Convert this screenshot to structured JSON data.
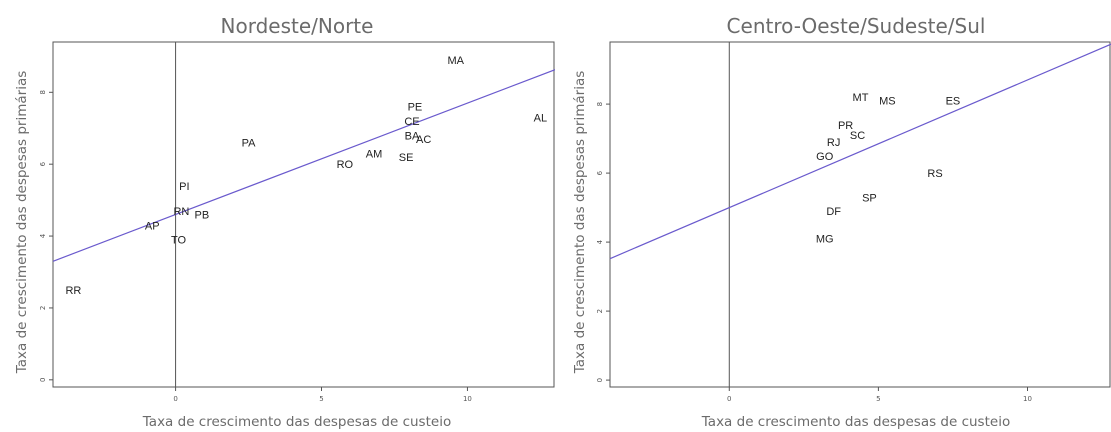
{
  "chart_data": [
    {
      "type": "scatter",
      "title": "Nordeste/Norte",
      "xlabel": "Taxa de crescimento das despesas de custeio",
      "ylabel": "Taxa de crescimento das despesas primárias",
      "xlim": [
        -4.2,
        13
      ],
      "ylim": [
        -0.2,
        9.4
      ],
      "xticks": [
        "0",
        "5",
        "10"
      ],
      "xtick_values": [
        0,
        5,
        10
      ],
      "yticks": [
        "0",
        "2",
        "4",
        "6",
        "8"
      ],
      "ytick_values": [
        0,
        2,
        4,
        6,
        8
      ],
      "grid": false,
      "fit_line": {
        "intercept": 4.6,
        "slope": 0.31,
        "color": "#6a5acd"
      },
      "points": [
        {
          "label": "MA",
          "x": 9.6,
          "y": 8.9
        },
        {
          "label": "AL",
          "x": 12.5,
          "y": 7.3
        },
        {
          "label": "PE",
          "x": 8.2,
          "y": 7.6
        },
        {
          "label": "CE",
          "x": 8.1,
          "y": 7.2
        },
        {
          "label": "BA",
          "x": 8.1,
          "y": 6.8
        },
        {
          "label": "AC",
          "x": 8.5,
          "y": 6.7
        },
        {
          "label": "PA",
          "x": 2.5,
          "y": 6.6
        },
        {
          "label": "AM",
          "x": 6.8,
          "y": 6.3
        },
        {
          "label": "SE",
          "x": 7.9,
          "y": 6.2
        },
        {
          "label": "RO",
          "x": 5.8,
          "y": 6.0
        },
        {
          "label": "PI",
          "x": 0.3,
          "y": 5.4
        },
        {
          "label": "RN",
          "x": 0.2,
          "y": 4.7
        },
        {
          "label": "PB",
          "x": 0.9,
          "y": 4.6
        },
        {
          "label": "AP",
          "x": -0.8,
          "y": 4.3
        },
        {
          "label": "TO",
          "x": 0.1,
          "y": 3.9
        },
        {
          "label": "RR",
          "x": -3.5,
          "y": 2.5
        }
      ]
    },
    {
      "type": "scatter",
      "title": "Centro-Oeste/Sudeste/Sul",
      "xlabel": "Taxa de crescimento das despesas de custeio",
      "ylabel": "Taxa de crescimento das despesas primárias",
      "xlim": [
        -4,
        12.8
      ],
      "ylim": [
        -0.2,
        9.8
      ],
      "xticks": [
        "0",
        "5",
        "10"
      ],
      "xtick_values": [
        0,
        5,
        10
      ],
      "yticks": [
        "0",
        "2",
        "4",
        "6",
        "8"
      ],
      "ytick_values": [
        0,
        2,
        4,
        6,
        8
      ],
      "grid": false,
      "fit_line": {
        "intercept": 5.0,
        "slope": 0.37,
        "color": "#6a5acd"
      },
      "points": [
        {
          "label": "MT",
          "x": 4.4,
          "y": 8.2
        },
        {
          "label": "MS",
          "x": 5.3,
          "y": 8.1
        },
        {
          "label": "ES",
          "x": 7.5,
          "y": 8.1
        },
        {
          "label": "PR",
          "x": 3.9,
          "y": 7.4
        },
        {
          "label": "SC",
          "x": 4.3,
          "y": 7.1
        },
        {
          "label": "RJ",
          "x": 3.5,
          "y": 6.9
        },
        {
          "label": "GO",
          "x": 3.2,
          "y": 6.5
        },
        {
          "label": "RS",
          "x": 6.9,
          "y": 6.0
        },
        {
          "label": "SP",
          "x": 4.7,
          "y": 5.3
        },
        {
          "label": "DF",
          "x": 3.5,
          "y": 4.9
        },
        {
          "label": "MG",
          "x": 3.2,
          "y": 4.1
        }
      ]
    }
  ]
}
